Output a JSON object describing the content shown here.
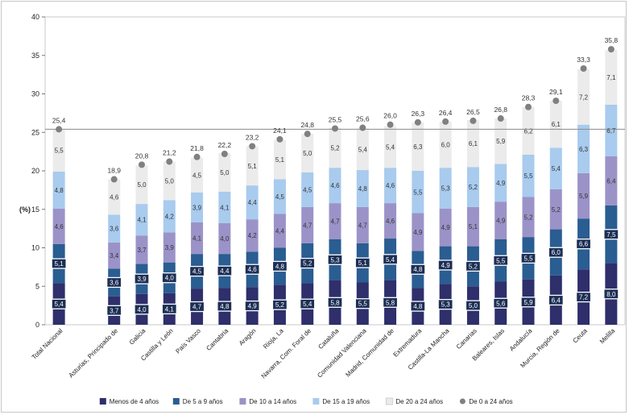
{
  "chart_data": {
    "type": "bar",
    "stacked": true,
    "ylabel": "(%)",
    "ylim": [
      0,
      40
    ],
    "yticks": [
      0,
      5,
      10,
      15,
      20,
      25,
      30,
      35,
      40
    ],
    "reference_line": 25.4,
    "categories": [
      "Total Nacional",
      "",
      "Asturias, Principado de",
      "Galicia",
      "Castilla y León",
      "País Vasco",
      "Cantabria",
      "Aragón",
      "Rioja, La",
      "Navarra, Com. Foral de",
      "Cataluña",
      "Comunidad Valenciana",
      "Madrid, Comunidad de",
      "Extremadura",
      "Castilla-La Mancha",
      "Canarias",
      "Baleares, Islas",
      "Andalucía",
      "Murcia, Región de",
      "Ceuta",
      "Melilla"
    ],
    "series": [
      {
        "name": "Menos de 4 años",
        "color": "#2e2f6b",
        "values": [
          5.4,
          null,
          3.7,
          4.0,
          4.1,
          4.7,
          4.8,
          4.9,
          5.2,
          5.4,
          5.8,
          5.5,
          5.8,
          4.8,
          5.3,
          5.0,
          5.6,
          5.9,
          6.4,
          7.2,
          8.0
        ],
        "labels": [
          "5,4",
          "",
          "3,7",
          "4,0",
          "4,1",
          "4,7",
          "4,8",
          "4,9",
          "5,2",
          "5,4",
          "5,8",
          "5,5",
          "5,8",
          "4,8",
          "5,3",
          "5,0",
          "5,6",
          "5,9",
          "6,4",
          "7,2",
          "8,0"
        ]
      },
      {
        "name": "De 5 a 9 años",
        "color": "#2a5d91",
        "values": [
          5.1,
          null,
          3.6,
          3.9,
          4.0,
          4.5,
          4.4,
          4.6,
          4.8,
          5.2,
          5.3,
          5.1,
          5.4,
          4.8,
          4.9,
          5.2,
          5.5,
          5.5,
          6.0,
          6.6,
          7.5
        ],
        "labels": [
          "5,1",
          "",
          "3,6",
          "3,9",
          "4,0",
          "4,5",
          "4,4",
          "4,6",
          "4,8",
          "5,2",
          "5,3",
          "5,1",
          "5,4",
          "4,8",
          "4,9",
          "5,2",
          "5,5",
          "5,5",
          "6,0",
          "6,6",
          "7,5"
        ]
      },
      {
        "name": "De 10 a 14 años",
        "color": "#9b93c8",
        "values": [
          4.6,
          null,
          3.4,
          3.7,
          3.9,
          4.1,
          4.0,
          4.2,
          4.4,
          4.7,
          4.7,
          4.7,
          4.6,
          4.9,
          4.9,
          5.1,
          4.9,
          5.2,
          5.2,
          5.9,
          6.4
        ],
        "labels": [
          "4,6",
          "",
          "3,4",
          "3,7",
          "3,9",
          "4,1",
          "4,0",
          "4,2",
          "4,4",
          "4,7",
          "4,7",
          "4,7",
          "4,6",
          "4,9",
          "4,9",
          "5,1",
          "4,9",
          "5,2",
          "5,2",
          "5,9",
          "6,4"
        ]
      },
      {
        "name": "De 15 a 19 años",
        "color": "#a8cbee",
        "values": [
          4.8,
          null,
          3.6,
          4.1,
          4.2,
          3.9,
          4.1,
          4.4,
          4.5,
          4.5,
          4.6,
          4.8,
          4.6,
          5.5,
          5.3,
          5.2,
          4.9,
          5.5,
          5.4,
          6.3,
          6.7
        ],
        "labels": [
          "4,8",
          "",
          "3,6",
          "4,1",
          "4,2",
          "3,9",
          "4,1",
          "4,4",
          "4,5",
          "4,5",
          "4,6",
          "4,8",
          "4,6",
          "5,5",
          "5,3",
          "5,2",
          "4,9",
          "5,5",
          "5,4",
          "6,3",
          "6,7"
        ]
      },
      {
        "name": "De 20 a 24 años",
        "color": "#ebebeb",
        "values": [
          5.5,
          null,
          4.6,
          5.0,
          5.0,
          4.5,
          5.0,
          5.1,
          5.1,
          5.0,
          5.2,
          5.4,
          5.4,
          6.3,
          6.0,
          6.1,
          5.9,
          6.2,
          6.1,
          7.2,
          7.1
        ],
        "labels": [
          "5,5",
          "",
          "4,6",
          "5,0",
          "5,0",
          "4,5",
          "5,0",
          "5,1",
          "5,1",
          "5,0",
          "5,2",
          "5,4",
          "5,4",
          "6,3",
          "6,0",
          "6,1",
          "5,9",
          "6,2",
          "6,1",
          "7,2",
          "7,1"
        ]
      }
    ],
    "totals": {
      "name": "De 0 a 24 años",
      "color": "#808080",
      "values": [
        25.4,
        null,
        18.9,
        20.8,
        21.2,
        21.8,
        22.2,
        23.2,
        24.1,
        24.8,
        25.5,
        25.6,
        26.0,
        26.3,
        26.4,
        26.5,
        26.8,
        28.3,
        29.1,
        33.3,
        35.8
      ],
      "labels": [
        "25,4",
        "",
        "18,9",
        "20,8",
        "21,2",
        "21,8",
        "22,2",
        "23,2",
        "24,1",
        "24,8",
        "25,5",
        "25,6",
        "26,0",
        "26,3",
        "26,4",
        "26,5",
        "26,8",
        "28,3",
        "29,1",
        "33,3",
        "35,8"
      ]
    },
    "legend_position": "bottom"
  }
}
